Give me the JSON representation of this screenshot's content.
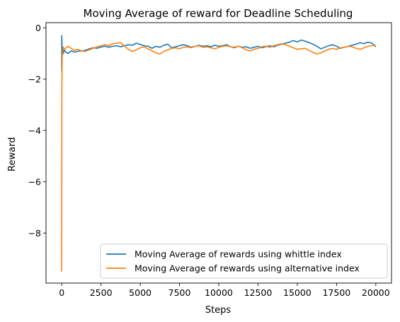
{
  "chart_data": {
    "type": "line",
    "title": "Moving Average of reward for Deadline Scheduling",
    "xlabel": "Steps",
    "ylabel": "Reward",
    "xlim": [
      -1000,
      21000
    ],
    "ylim": [
      -9.95,
      0.2
    ],
    "xticks": [
      0,
      2500,
      5000,
      7500,
      10000,
      12500,
      15000,
      17500,
      20000
    ],
    "yticks": [
      -8,
      -6,
      -4,
      -2,
      0
    ],
    "grid": false,
    "legend_position": "lower-right",
    "series": [
      {
        "name": "Moving Average of rewards using whittle index",
        "color": "#1f77b4",
        "x": [
          0,
          5,
          15,
          30,
          60,
          100,
          150,
          250,
          400,
          600,
          800,
          1000,
          1250,
          1500,
          1750,
          2000,
          2250,
          2500,
          2750,
          3000,
          3250,
          3500,
          3750,
          4000,
          4250,
          4500,
          4750,
          5000,
          5250,
          5500,
          5750,
          6000,
          6250,
          6500,
          6750,
          7000,
          7250,
          7500,
          7750,
          8000,
          8250,
          8500,
          8750,
          9000,
          9250,
          9500,
          9750,
          10000,
          10250,
          10500,
          10750,
          11000,
          11250,
          11500,
          11750,
          12000,
          12250,
          12500,
          12750,
          13000,
          13250,
          13500,
          13750,
          14000,
          14250,
          14500,
          14750,
          15000,
          15250,
          15500,
          15750,
          16000,
          16250,
          16500,
          16750,
          17000,
          17250,
          17500,
          17750,
          18000,
          18250,
          18500,
          18750,
          19000,
          19250,
          19500,
          19750,
          20000
        ],
        "values": [
          -1.7,
          -0.3,
          -0.6,
          -1.0,
          -0.8,
          -1.0,
          -0.85,
          -0.95,
          -1.0,
          -0.9,
          -0.95,
          -0.92,
          -0.9,
          -0.88,
          -0.82,
          -0.78,
          -0.8,
          -0.75,
          -0.72,
          -0.76,
          -0.72,
          -0.7,
          -0.74,
          -0.7,
          -0.66,
          -0.68,
          -0.6,
          -0.65,
          -0.7,
          -0.72,
          -0.8,
          -0.72,
          -0.76,
          -0.68,
          -0.64,
          -0.78,
          -0.74,
          -0.7,
          -0.66,
          -0.7,
          -0.76,
          -0.72,
          -0.68,
          -0.72,
          -0.7,
          -0.74,
          -0.68,
          -0.72,
          -0.7,
          -0.66,
          -0.74,
          -0.78,
          -0.72,
          -0.76,
          -0.74,
          -0.8,
          -0.76,
          -0.72,
          -0.78,
          -0.74,
          -0.7,
          -0.74,
          -0.68,
          -0.64,
          -0.6,
          -0.56,
          -0.5,
          -0.55,
          -0.48,
          -0.52,
          -0.58,
          -0.64,
          -0.72,
          -0.82,
          -0.76,
          -0.7,
          -0.66,
          -0.72,
          -0.8,
          -0.76,
          -0.72,
          -0.68,
          -0.64,
          -0.58,
          -0.62,
          -0.56,
          -0.6,
          -0.74
        ]
      },
      {
        "name": "Moving Average of rewards using alternative index",
        "color": "#ff7f0e",
        "x": [
          0,
          5,
          15,
          30,
          60,
          100,
          150,
          250,
          400,
          600,
          800,
          1000,
          1250,
          1500,
          1750,
          2000,
          2250,
          2500,
          2750,
          3000,
          3250,
          3500,
          3750,
          4000,
          4250,
          4500,
          4750,
          5000,
          5250,
          5500,
          5750,
          6000,
          6250,
          6500,
          6750,
          7000,
          7250,
          7500,
          7750,
          8000,
          8250,
          8500,
          8750,
          9000,
          9250,
          9500,
          9750,
          10000,
          10250,
          10500,
          10750,
          11000,
          11250,
          11500,
          11750,
          12000,
          12250,
          12500,
          12750,
          13000,
          13250,
          13500,
          13750,
          14000,
          14250,
          14500,
          14750,
          15000,
          15250,
          15500,
          15750,
          16000,
          16250,
          16500,
          16750,
          17000,
          17250,
          17500,
          17750,
          18000,
          18250,
          18500,
          18750,
          19000,
          19250,
          19500,
          19750,
          20000
        ],
        "values": [
          -9.5,
          -3.5,
          -1.8,
          -1.2,
          -0.9,
          -0.75,
          -0.85,
          -0.8,
          -0.72,
          -0.8,
          -0.88,
          -0.84,
          -0.9,
          -0.92,
          -0.86,
          -0.8,
          -0.74,
          -0.7,
          -0.66,
          -0.7,
          -0.62,
          -0.6,
          -0.58,
          -0.72,
          -0.84,
          -0.92,
          -0.86,
          -0.78,
          -0.74,
          -0.82,
          -0.9,
          -0.98,
          -1.02,
          -0.92,
          -0.86,
          -0.8,
          -0.78,
          -0.82,
          -0.76,
          -0.74,
          -0.78,
          -0.72,
          -0.7,
          -0.76,
          -0.74,
          -0.78,
          -0.82,
          -0.76,
          -0.72,
          -0.7,
          -0.74,
          -0.76,
          -0.72,
          -0.78,
          -0.86,
          -0.9,
          -0.84,
          -0.8,
          -0.74,
          -0.72,
          -0.76,
          -0.7,
          -0.66,
          -0.62,
          -0.66,
          -0.72,
          -0.78,
          -0.84,
          -0.82,
          -0.8,
          -0.88,
          -0.96,
          -1.02,
          -0.98,
          -0.9,
          -0.84,
          -0.8,
          -0.84,
          -0.78,
          -0.76,
          -0.72,
          -0.74,
          -0.8,
          -0.84,
          -0.78,
          -0.72,
          -0.7,
          -0.68
        ]
      }
    ]
  }
}
